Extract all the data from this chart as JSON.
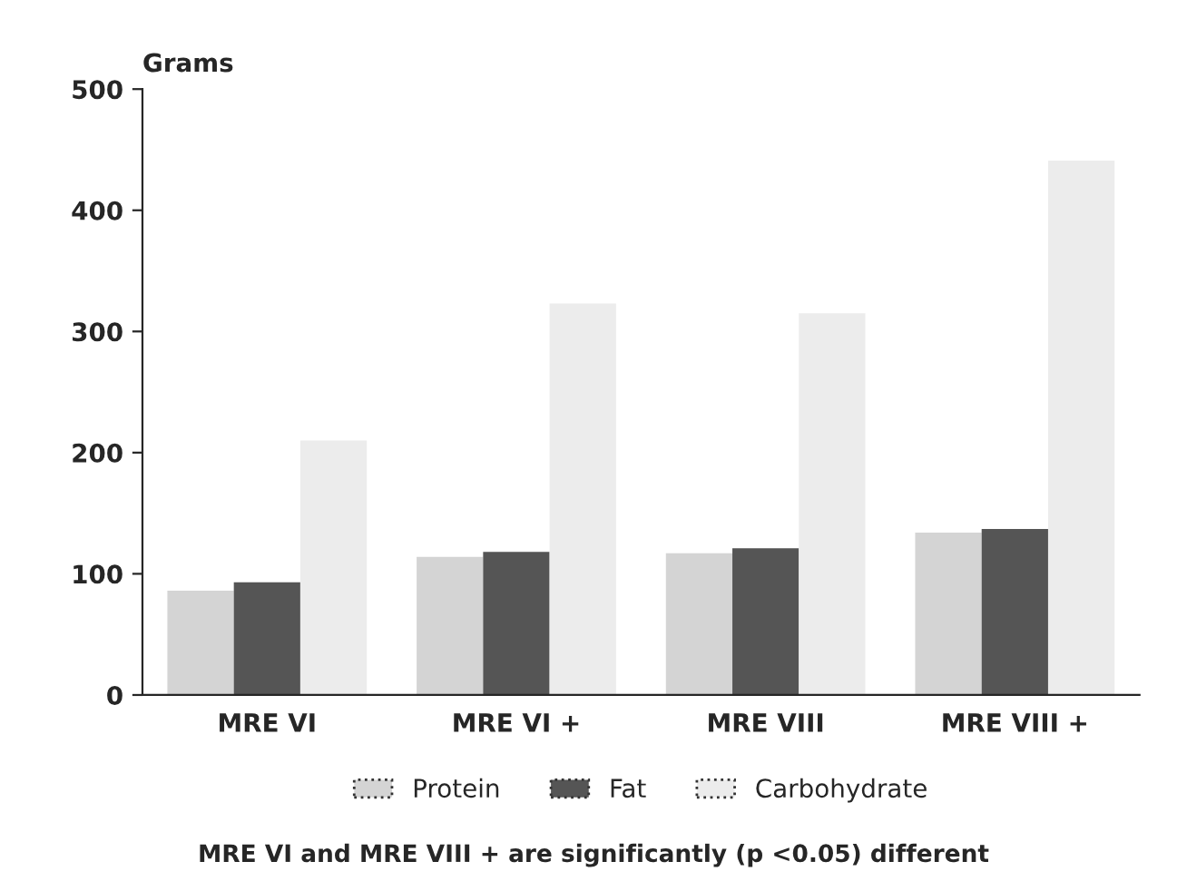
{
  "chart_data": {
    "type": "bar",
    "ylabel": "Grams",
    "categories": [
      "MRE VI",
      "MRE VI +",
      "MRE VIII",
      "MRE VIII +"
    ],
    "series": [
      {
        "name": "Protein",
        "color": "#d4d4d4",
        "values": [
          86,
          114,
          117,
          134
        ]
      },
      {
        "name": "Fat",
        "color": "#555555",
        "values": [
          93,
          118,
          121,
          137
        ]
      },
      {
        "name": "Carbohydrate",
        "color": "#ececec",
        "values": [
          210,
          323,
          315,
          441
        ]
      }
    ],
    "ylim": [
      0,
      500
    ],
    "yticks": [
      0,
      100,
      200,
      300,
      400,
      500
    ],
    "grid": false,
    "legend": "bottom",
    "annotations": [
      "MRE VI and MRE VIII + are significantly (p <0.05) different"
    ]
  }
}
